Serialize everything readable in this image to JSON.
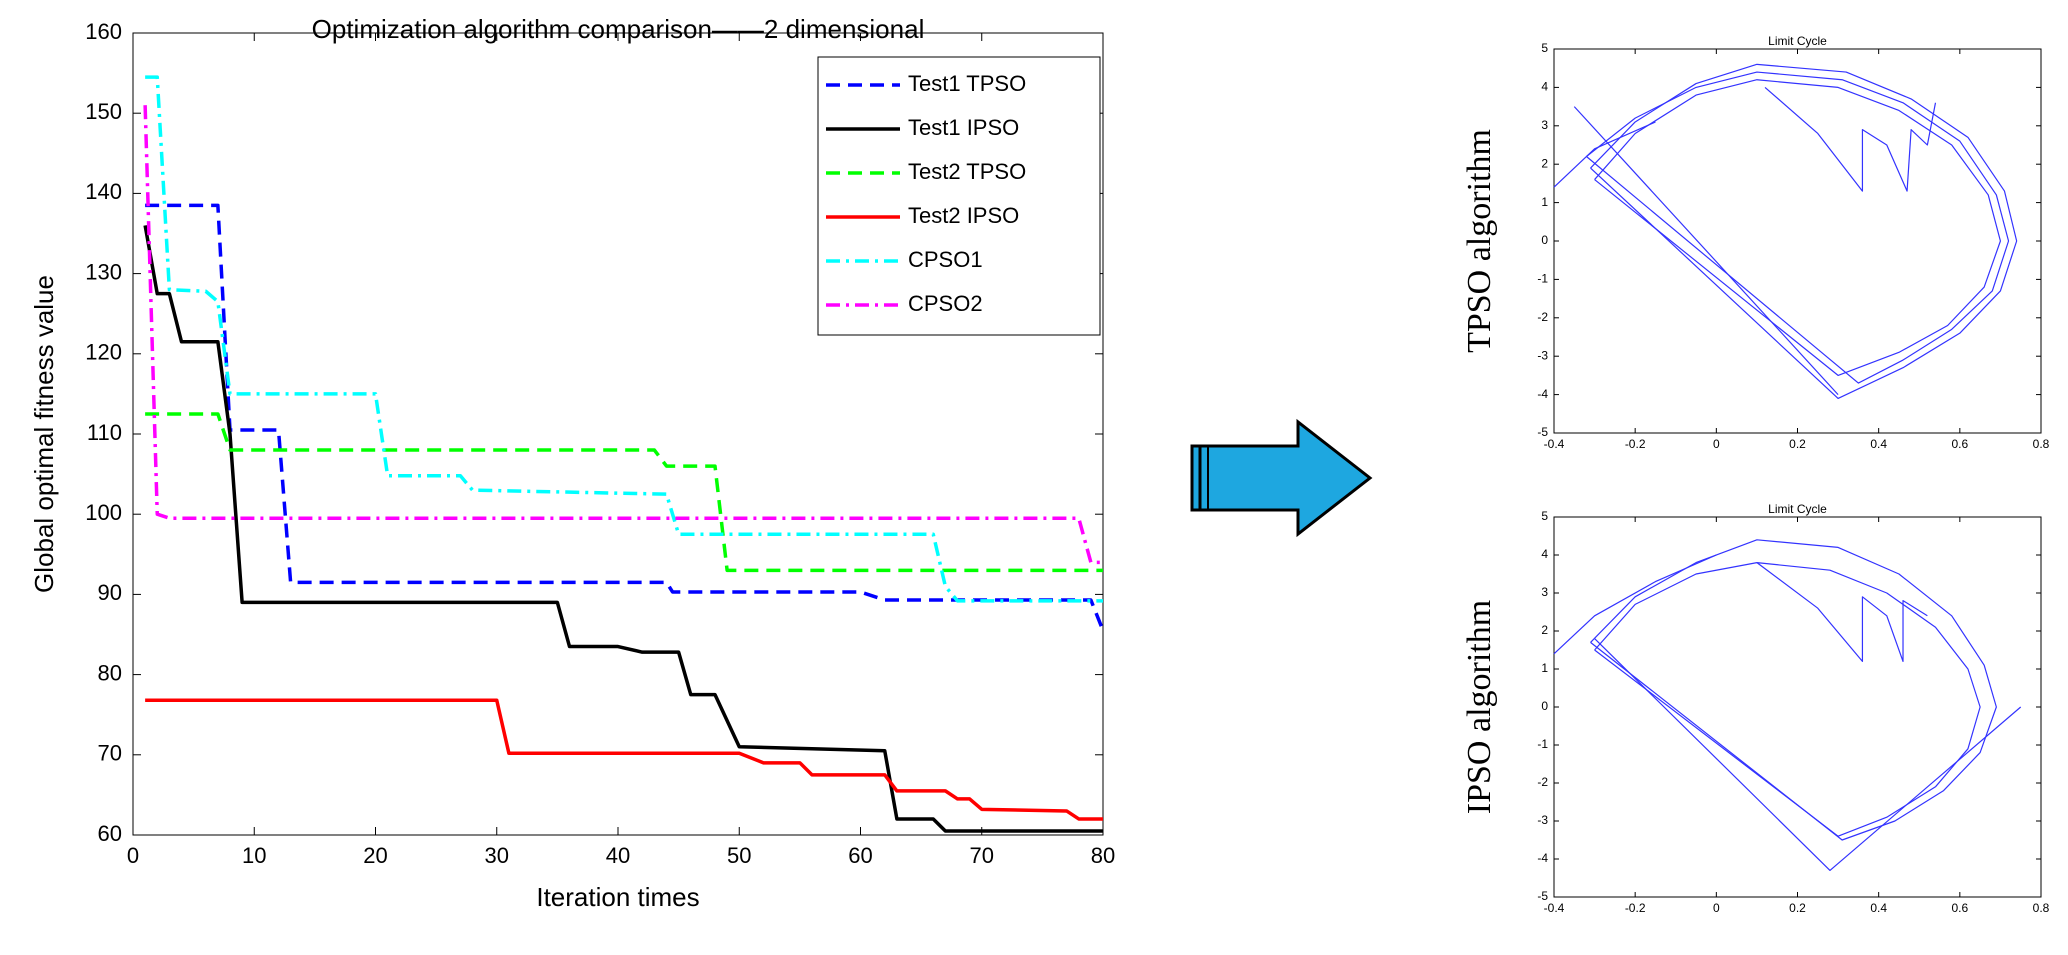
{
  "chart_data": [
    {
      "type": "line",
      "title": "Optimization algorithm comparison——2 dimensional",
      "xlabel": "Iteration times",
      "ylabel": "Global optimal fitness value",
      "xlim": [
        0,
        80
      ],
      "xticks": [
        0,
        10,
        20,
        30,
        40,
        50,
        60,
        70,
        80
      ],
      "ylim": [
        60,
        160
      ],
      "yticks": [
        60,
        70,
        80,
        90,
        100,
        110,
        120,
        130,
        140,
        150,
        160
      ],
      "legend": "upper right",
      "series": [
        {
          "name": "Test1 TPSO",
          "color": "#0000ff",
          "style": "dashed",
          "x": [
            1,
            7,
            8,
            12,
            13,
            44,
            44.5,
            60,
            62,
            79,
            80
          ],
          "values": [
            138.5,
            138.5,
            110.5,
            110.5,
            91.5,
            91.5,
            90.3,
            90.3,
            89.3,
            89.3,
            85.5
          ]
        },
        {
          "name": "Test1 IPSO",
          "color": "#000000",
          "style": "solid",
          "x": [
            1,
            2,
            3,
            4,
            7,
            8,
            9,
            35,
            36,
            40,
            42,
            45,
            46,
            48,
            50,
            62,
            63,
            66,
            67,
            80
          ],
          "values": [
            136,
            127.5,
            127.5,
            121.5,
            121.5,
            110,
            89,
            89,
            83.5,
            83.5,
            82.8,
            82.8,
            77.5,
            77.5,
            71,
            70.5,
            62,
            62,
            60.5,
            60.5
          ]
        },
        {
          "name": "Test2 TPSO",
          "color": "#00ff00",
          "style": "dashed",
          "x": [
            1,
            7,
            8,
            43,
            44,
            48,
            49,
            80
          ],
          "values": [
            112.5,
            112.5,
            108,
            108,
            106,
            106,
            93,
            93
          ]
        },
        {
          "name": "Test2 IPSO",
          "color": "#ff0000",
          "style": "solid",
          "x": [
            1,
            30,
            31,
            50,
            52,
            55,
            56,
            62,
            63,
            67,
            68,
            69,
            70,
            77,
            78,
            80
          ],
          "values": [
            76.8,
            76.8,
            70.2,
            70.2,
            69,
            69,
            67.5,
            67.5,
            65.5,
            65.5,
            64.5,
            64.5,
            63.2,
            63,
            62,
            62
          ]
        },
        {
          "name": "CPSO1",
          "color": "#00ffff",
          "style": "dashdot",
          "x": [
            1,
            2,
            3,
            6,
            7,
            8,
            20,
            21,
            27,
            28,
            44,
            45,
            66,
            67,
            68,
            80
          ],
          "values": [
            154.5,
            154.5,
            128,
            127.8,
            126.5,
            115,
            115,
            104.8,
            104.8,
            103,
            102.5,
            97.5,
            97.5,
            91,
            89.2,
            89.2
          ]
        },
        {
          "name": "CPSO2",
          "color": "#ff00ff",
          "style": "dashdot",
          "x": [
            1,
            2,
            3,
            78,
            79,
            80
          ],
          "values": [
            151,
            100,
            99.5,
            99.5,
            94,
            94
          ]
        }
      ]
    },
    {
      "type": "trajectory",
      "title": "Limit Cycle",
      "ylabel": "TPSO algorithm",
      "color": "#3333ff",
      "xlim": [
        -0.4,
        0.8
      ],
      "xticks": [
        -0.4,
        -0.2,
        0,
        0.2,
        0.4,
        0.6,
        0.8
      ],
      "ylim": [
        -5,
        5
      ],
      "yticks": [
        -5,
        -4,
        -3,
        -2,
        -1,
        0,
        1,
        2,
        3,
        4,
        5
      ],
      "lines": [
        {
          "x": [
            -0.35,
            0.3
          ],
          "y": [
            3.5,
            -4.0
          ]
        },
        {
          "x": [
            -0.3,
            -0.2,
            -0.05,
            0.1,
            0.3,
            0.45,
            0.58,
            0.67,
            0.7,
            0.66,
            0.57,
            0.45,
            0.3,
            -0.3
          ],
          "y": [
            1.6,
            2.8,
            3.8,
            4.2,
            4.0,
            3.4,
            2.5,
            1.2,
            0,
            -1.2,
            -2.2,
            -2.9,
            -3.5,
            1.6
          ]
        },
        {
          "x": [
            -0.31,
            -0.2,
            -0.05,
            0.1,
            0.32,
            0.48,
            0.62,
            0.71,
            0.74,
            0.7,
            0.6,
            0.46,
            0.3,
            -0.31
          ],
          "y": [
            1.9,
            3.1,
            4.1,
            4.6,
            4.4,
            3.7,
            2.7,
            1.3,
            0,
            -1.3,
            -2.4,
            -3.3,
            -4.1,
            1.9
          ]
        },
        {
          "x": [
            -0.32,
            -0.2,
            -0.05,
            0.1,
            0.31,
            0.46,
            0.6,
            0.69,
            0.72,
            0.68,
            0.58,
            0.46,
            0.35,
            -0.32
          ],
          "y": [
            2.2,
            3.2,
            4.0,
            4.4,
            4.2,
            3.6,
            2.6,
            1.2,
            0,
            -1.3,
            -2.3,
            -3.1,
            -3.7,
            2.2
          ]
        },
        {
          "x": [
            -0.4,
            -0.3,
            -0.15
          ],
          "y": [
            1.4,
            2.4,
            3.1
          ]
        },
        {
          "x": [
            0.12,
            0.25,
            0.36,
            0.36,
            0.42,
            0.47,
            0.48,
            0.52,
            0.54
          ],
          "y": [
            4.0,
            2.8,
            1.3,
            2.9,
            2.5,
            1.3,
            2.9,
            2.5,
            3.6
          ]
        }
      ]
    },
    {
      "type": "trajectory",
      "title": "Limit Cycle",
      "ylabel": "IPSO algorithm",
      "color": "#3333ff",
      "xlim": [
        -0.4,
        0.8
      ],
      "xticks": [
        -0.4,
        -0.2,
        0,
        0.2,
        0.4,
        0.6,
        0.8
      ],
      "ylim": [
        -5,
        5
      ],
      "yticks": [
        -5,
        -4,
        -3,
        -2,
        -1,
        0,
        1,
        2,
        3,
        4,
        5
      ],
      "lines": [
        {
          "x": [
            -0.3,
            0.28,
            0.75
          ],
          "y": [
            1.8,
            -4.3,
            0
          ]
        },
        {
          "x": [
            -0.3,
            -0.2,
            -0.05,
            0.1,
            0.28,
            0.42,
            0.54,
            0.62,
            0.65,
            0.62,
            0.54,
            0.42,
            0.3,
            -0.3
          ],
          "y": [
            1.5,
            2.7,
            3.5,
            3.8,
            3.6,
            3.0,
            2.1,
            1.0,
            0,
            -1.1,
            -2.1,
            -2.9,
            -3.4,
            1.5
          ]
        },
        {
          "x": [
            -0.31,
            -0.2,
            -0.05,
            0.1,
            0.3,
            0.45,
            0.58,
            0.66,
            0.69,
            0.65,
            0.56,
            0.44,
            0.31,
            -0.31
          ],
          "y": [
            1.7,
            2.9,
            3.8,
            4.4,
            4.2,
            3.5,
            2.4,
            1.1,
            0,
            -1.2,
            -2.2,
            -3.0,
            -3.5,
            1.7
          ]
        },
        {
          "x": [
            -0.4,
            -0.3,
            -0.15,
            0.0
          ],
          "y": [
            1.4,
            2.4,
            3.3,
            4.0
          ]
        },
        {
          "x": [
            0.1,
            0.25,
            0.36,
            0.36,
            0.42,
            0.46,
            0.46,
            0.52
          ],
          "y": [
            3.8,
            2.6,
            1.2,
            2.9,
            2.4,
            1.2,
            2.8,
            2.4
          ]
        }
      ]
    }
  ]
}
